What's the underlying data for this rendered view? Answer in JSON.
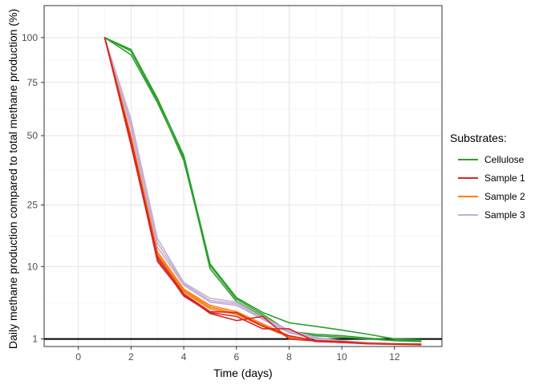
{
  "chart_data": {
    "type": "line",
    "title": "",
    "xlabel": "Time (days)",
    "ylabel": "Daily methane production compared to total methane production (%)",
    "xlim": [
      -1.3,
      13.8
    ],
    "ylim": [
      0.6,
      120
    ],
    "y_scale": "sqrt",
    "x_ticks": [
      0,
      2,
      4,
      6,
      8,
      10,
      12
    ],
    "y_ticks": [
      1,
      10,
      25,
      50,
      75,
      100
    ],
    "grid": true,
    "reference_line": {
      "y": 1,
      "color": "#000000"
    },
    "legend": {
      "title": "Substrates:",
      "position": "right",
      "entries": [
        {
          "label": "Cellulose",
          "color": "#2ca02c"
        },
        {
          "label": "Sample 1",
          "color": "#d62728"
        },
        {
          "label": "Sample 2",
          "color": "#ff7f0e"
        },
        {
          "label": "Sample 3",
          "color": "#c5b0d5"
        }
      ]
    },
    "x": [
      1,
      2,
      3,
      4,
      5,
      6,
      7,
      8,
      9,
      10,
      11,
      12,
      13
    ],
    "series": [
      {
        "group": "Cellulose",
        "color": "#2ca02c",
        "values": [
          100,
          93,
          67,
          42,
          10.5,
          5,
          3.2,
          2.2,
          1.9,
          1.6,
          1.3,
          1.0,
          0.95
        ]
      },
      {
        "group": "Cellulose",
        "color": "#2ca02c",
        "values": [
          100,
          90,
          65,
          41,
          9.6,
          4.5,
          2.8,
          1.4,
          1.2,
          1.1,
          1.0,
          0.9,
          0.85
        ]
      },
      {
        "group": "Cellulose",
        "color": "#2ca02c",
        "values": [
          100,
          92,
          66,
          40,
          10.2,
          4.8,
          3.0,
          1.5,
          1.3,
          1.2,
          1.05,
          0.92,
          0.9
        ]
      },
      {
        "group": "Sample 3",
        "color": "#c5b0d5",
        "values": [
          100,
          57,
          16,
          7.2,
          4.9,
          4.4,
          2.7,
          1.6,
          1.1,
          0.9,
          0.8,
          0.75,
          0.72
        ]
      },
      {
        "group": "Sample 3",
        "color": "#c5b0d5",
        "values": [
          100,
          55,
          15,
          7.0,
          4.6,
          4.2,
          2.6,
          1.5,
          1.05,
          0.88,
          0.78,
          0.74,
          0.7
        ]
      },
      {
        "group": "Sample 3",
        "color": "#c5b0d5",
        "values": [
          100,
          53,
          14,
          6.8,
          4.4,
          4.0,
          2.5,
          1.4,
          1.0,
          0.85,
          0.77,
          0.72,
          0.7
        ]
      },
      {
        "group": "Sample 2",
        "color": "#ff7f0e",
        "values": [
          100,
          50,
          13,
          6.2,
          4.0,
          3.3,
          2.1,
          1.2,
          0.9,
          0.82,
          0.76,
          0.72,
          0.7
        ]
      },
      {
        "group": "Sample 2",
        "color": "#ff7f0e",
        "values": [
          100,
          49,
          12.5,
          6.0,
          3.8,
          3.1,
          2.0,
          1.15,
          0.88,
          0.8,
          0.75,
          0.71,
          0.7
        ]
      },
      {
        "group": "Sample 2",
        "color": "#ff7f0e",
        "values": [
          100,
          48,
          12,
          5.8,
          3.6,
          3.0,
          1.9,
          1.1,
          0.87,
          0.8,
          0.74,
          0.7,
          0.69
        ]
      },
      {
        "group": "Sample 1",
        "color": "#d62728",
        "values": [
          100,
          48,
          12,
          5.5,
          3.3,
          3.2,
          1.9,
          1.2,
          0.9,
          0.85,
          0.75,
          0.72,
          0.72
        ]
      },
      {
        "group": "Sample 1",
        "color": "#d62728",
        "values": [
          100,
          47,
          11,
          5.4,
          3.1,
          2.4,
          2.8,
          1.0,
          0.88,
          0.82,
          0.74,
          0.72,
          0.7
        ]
      },
      {
        "group": "Sample 1",
        "color": "#d62728",
        "values": [
          100,
          46,
          11.5,
          5.2,
          3.2,
          2.8,
          1.7,
          1.7,
          0.85,
          0.8,
          0.73,
          0.71,
          0.68
        ]
      }
    ]
  }
}
